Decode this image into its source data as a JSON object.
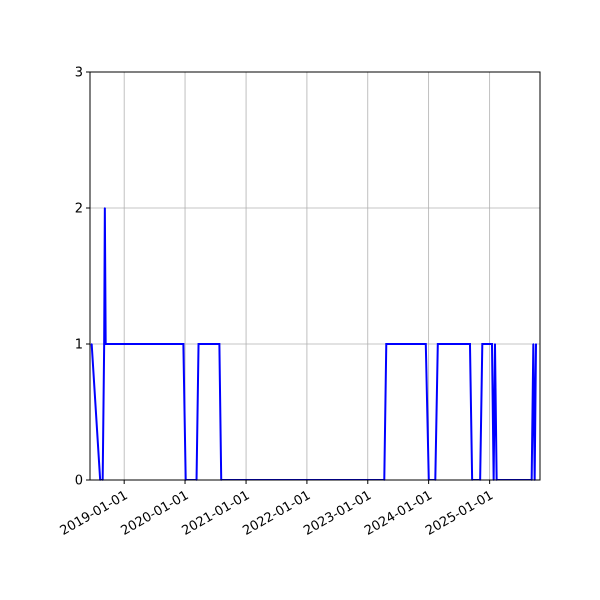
{
  "chart_data": {
    "type": "line",
    "title": "",
    "xlabel": "",
    "ylabel": "",
    "xlim": [
      "2018-06-10",
      "2025-10-30"
    ],
    "ylim": [
      0,
      3
    ],
    "grid": true,
    "line_color": "#0000ff",
    "x_tick_labels": [
      "2019-01-01",
      "2020-01-01",
      "2021-01-01",
      "2022-01-01",
      "2023-01-01",
      "2024-01-01",
      "2025-01-01"
    ],
    "y_tick_labels": [
      "0",
      "1",
      "2",
      "3"
    ],
    "series": [
      {
        "x": [
          "2018-06-20",
          "2018-08-10",
          "2018-08-25",
          "2018-09-03",
          "2018-09-07",
          "2018-09-12",
          "2019-12-22",
          "2020-01-05",
          "2020-03-10",
          "2020-03-22",
          "2020-07-25",
          "2020-08-05",
          "2023-04-10",
          "2023-04-22",
          "2023-12-15",
          "2024-01-02",
          "2024-02-10",
          "2024-02-25",
          "2024-09-05",
          "2024-09-18",
          "2024-11-05",
          "2024-11-18",
          "2025-01-15",
          "2025-01-25",
          "2025-02-02",
          "2025-02-12",
          "2025-09-10",
          "2025-09-20",
          "2025-09-28",
          "2025-10-06"
        ],
        "values": [
          1,
          0,
          0,
          1,
          2,
          1,
          1,
          0,
          0,
          1,
          1,
          0,
          0,
          1,
          1,
          0,
          0,
          1,
          1,
          0,
          0,
          1,
          1,
          0,
          1,
          0,
          0,
          1,
          0,
          1
        ]
      }
    ]
  }
}
